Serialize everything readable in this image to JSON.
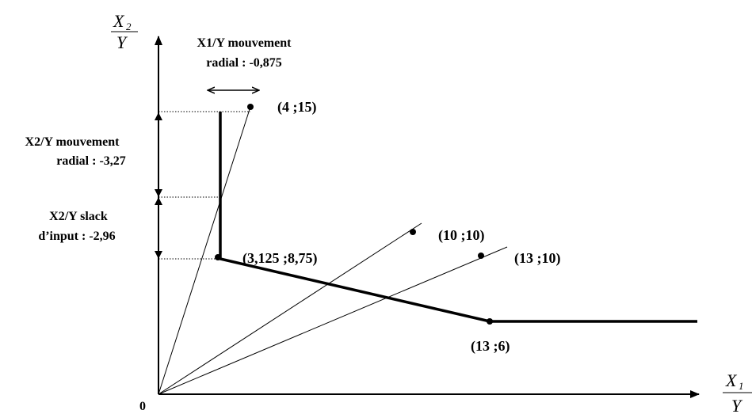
{
  "axes": {
    "x_label_num": "X",
    "x_label_sub": "1",
    "x_label_den": "Y",
    "y_label_num": "X",
    "y_label_sub": "2",
    "y_label_den": "Y",
    "origin_label": "0"
  },
  "points": [
    {
      "id": "p-4-15",
      "label": "(4 ;15)",
      "x": 4,
      "y": 15
    },
    {
      "id": "p-10-10",
      "label": "(10 ;10)",
      "x": 10,
      "y": 10
    },
    {
      "id": "p-13-10",
      "label": "(13 ;10)",
      "x": 13,
      "y": 10
    },
    {
      "id": "p-3125-875",
      "label": "(3,125 ;8,75)",
      "x": 3.125,
      "y": 8.75
    },
    {
      "id": "p-13-6",
      "label": "(13 ;6)",
      "x": 13,
      "y": 6
    }
  ],
  "frontier": {
    "vertical_x": 3.125,
    "vertical_top_y": 15,
    "vertex": [
      3.125,
      8.75
    ],
    "corner": [
      13,
      6
    ],
    "horizontal_extends_to_x": 18
  },
  "annotations": {
    "x1_radial_line1": "X1/Y mouvement",
    "x1_radial_line2": "radial : -0,875",
    "x2_radial_line1": "X2/Y mouvement",
    "x2_radial_line2": "radial : -3,27",
    "x2_slack_line1": "X2/Y slack",
    "x2_slack_line2": "d’input : -2,96"
  }
}
